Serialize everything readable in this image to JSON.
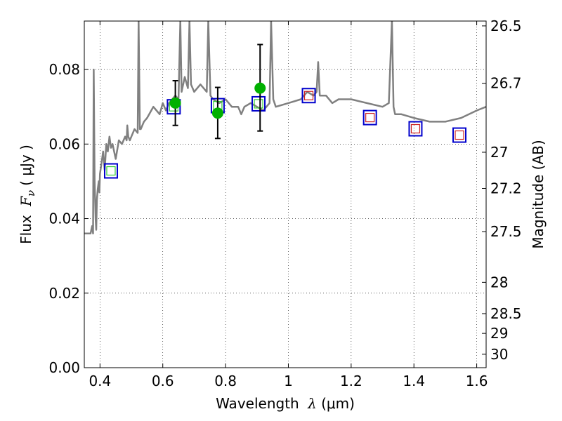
{
  "chart_data": {
    "type": "scatter",
    "xlabel_text": "Wavelength",
    "xlabel_symbol": "λ",
    "xlabel_unit": "(μm)",
    "ylabel_text": "Flux",
    "ylabel_symbol": "F",
    "ylabel_subscript": "ν",
    "ylabel_unit": "( μJy )",
    "y2label": "Magnitude (AB)",
    "xlim": [
      0.35,
      1.63
    ],
    "ylim": [
      0.0,
      0.093
    ],
    "grid": true,
    "x_ticks": [
      0.4,
      0.6,
      0.8,
      1.0,
      1.2,
      1.4,
      1.6
    ],
    "x_tick_labels": [
      "0.4",
      "0.6",
      "0.8",
      "1",
      "1.2",
      "1.4",
      "1.6"
    ],
    "y_ticks": [
      0.0,
      0.02,
      0.04,
      0.06,
      0.08
    ],
    "y_tick_labels": [
      "0.00",
      "0.02",
      "0.04",
      "0.06",
      "0.08"
    ],
    "y2_ticks": [
      {
        "label": "26.5",
        "flux": 0.0917
      },
      {
        "label": "26.7",
        "flux": 0.0763
      },
      {
        "label": "27",
        "flux": 0.0578
      },
      {
        "label": "27.2",
        "flux": 0.0481
      },
      {
        "label": "27.5",
        "flux": 0.0365
      },
      {
        "label": "28",
        "flux": 0.0229
      },
      {
        "label": "28.5",
        "flux": 0.0145
      },
      {
        "label": "29",
        "flux": 0.0092
      },
      {
        "label": "30",
        "flux": 0.0036
      }
    ],
    "colors": {
      "spectrum": "#808080",
      "observed": "#00b000",
      "model_outer": "#0000cc",
      "model_inner_green": "#33cc33",
      "model_inner_red": "#cc2222"
    },
    "series": [
      {
        "kind": "model spectrum",
        "x": [
          0.35,
          0.37,
          0.375,
          0.378,
          0.38,
          0.383,
          0.386,
          0.388,
          0.39,
          0.393,
          0.396,
          0.398,
          0.4,
          0.405,
          0.41,
          0.415,
          0.42,
          0.425,
          0.43,
          0.435,
          0.44,
          0.45,
          0.46,
          0.47,
          0.48,
          0.485,
          0.487,
          0.49,
          0.495,
          0.5,
          0.51,
          0.52,
          0.523,
          0.527,
          0.53,
          0.54,
          0.55,
          0.57,
          0.59,
          0.6,
          0.61,
          0.62,
          0.64,
          0.65,
          0.656,
          0.66,
          0.67,
          0.68,
          0.685,
          0.69,
          0.7,
          0.72,
          0.74,
          0.745,
          0.752,
          0.76,
          0.78,
          0.8,
          0.82,
          0.84,
          0.85,
          0.86,
          0.88,
          0.9,
          0.92,
          0.94,
          0.945,
          0.952,
          0.96,
          1.0,
          1.04,
          1.06,
          1.08,
          1.09,
          1.095,
          1.1,
          1.12,
          1.14,
          1.16,
          1.2,
          1.25,
          1.3,
          1.32,
          1.33,
          1.335,
          1.34,
          1.36,
          1.4,
          1.45,
          1.5,
          1.55,
          1.6,
          1.63
        ],
        "y": [
          0.036,
          0.036,
          0.038,
          0.036,
          0.08,
          0.05,
          0.04,
          0.037,
          0.045,
          0.048,
          0.05,
          0.047,
          0.052,
          0.055,
          0.058,
          0.053,
          0.06,
          0.058,
          0.062,
          0.059,
          0.06,
          0.056,
          0.061,
          0.06,
          0.062,
          0.061,
          0.065,
          0.062,
          0.061,
          0.062,
          0.064,
          0.063,
          0.093,
          0.064,
          0.064,
          0.066,
          0.067,
          0.07,
          0.068,
          0.071,
          0.069,
          0.071,
          0.073,
          0.072,
          0.093,
          0.074,
          0.078,
          0.075,
          0.093,
          0.076,
          0.074,
          0.076,
          0.074,
          0.093,
          0.073,
          0.072,
          0.071,
          0.072,
          0.07,
          0.07,
          0.068,
          0.07,
          0.071,
          0.07,
          0.069,
          0.071,
          0.093,
          0.072,
          0.07,
          0.071,
          0.072,
          0.074,
          0.073,
          0.074,
          0.082,
          0.073,
          0.073,
          0.071,
          0.072,
          0.072,
          0.071,
          0.07,
          0.071,
          0.093,
          0.07,
          0.068,
          0.068,
          0.067,
          0.066,
          0.066,
          0.067,
          0.069,
          0.07
        ]
      },
      {
        "kind": "observed photometry",
        "x": [
          0.64,
          0.775,
          0.91
        ],
        "y": [
          0.071,
          0.0683,
          0.075
        ],
        "yerr_low": [
          0.065,
          0.0615,
          0.0635
        ],
        "yerr_high": [
          0.077,
          0.0752,
          0.0867
        ]
      },
      {
        "kind": "model photometry (green inner)",
        "x": [
          0.435,
          0.635,
          0.775,
          0.905
        ],
        "y": [
          0.0528,
          0.07,
          0.0703,
          0.0708
        ]
      },
      {
        "kind": "model photometry (red inner)",
        "x": [
          1.065,
          1.26,
          1.405,
          1.545
        ],
        "y": [
          0.073,
          0.0671,
          0.0641,
          0.0624
        ]
      }
    ]
  }
}
